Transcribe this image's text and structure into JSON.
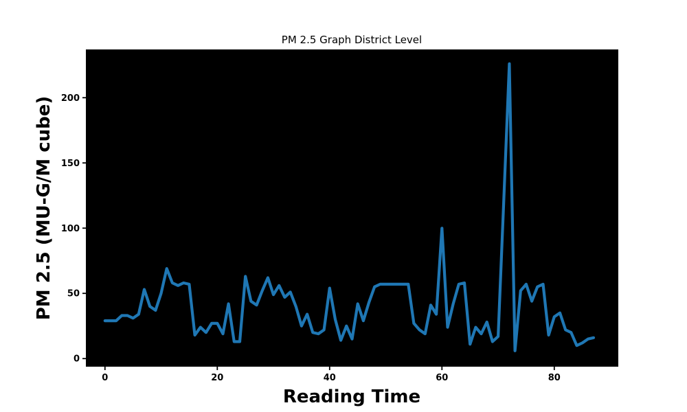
{
  "figure": {
    "title": "PM 2.5 Graph District Level",
    "xlabel": "Reading Time",
    "ylabel": "PM 2.5 (MU-G/M cube)"
  },
  "chart_data": {
    "type": "line",
    "title": "PM 2.5 Graph District Level",
    "xlabel": "Reading Time",
    "ylabel": "PM 2.5 (MU-G/M cube)",
    "x": [
      0,
      1,
      2,
      3,
      4,
      5,
      6,
      7,
      8,
      9,
      10,
      11,
      12,
      13,
      14,
      15,
      16,
      17,
      18,
      19,
      20,
      21,
      22,
      23,
      24,
      25,
      26,
      27,
      28,
      29,
      30,
      31,
      32,
      33,
      34,
      35,
      36,
      37,
      38,
      39,
      40,
      41,
      42,
      43,
      44,
      45,
      46,
      47,
      48,
      49,
      50,
      51,
      52,
      53,
      54,
      55,
      56,
      57,
      58,
      59,
      60,
      61,
      62,
      63,
      64,
      65,
      66,
      67,
      68,
      69,
      70,
      71,
      72,
      73,
      74,
      75,
      76,
      77,
      78,
      79,
      80,
      81,
      82,
      83,
      84,
      85,
      86,
      87
    ],
    "values": [
      29,
      29,
      29,
      33,
      33,
      31,
      34,
      53,
      40,
      37,
      50,
      69,
      58,
      56,
      58,
      57,
      18,
      24,
      20,
      27,
      27,
      19,
      42,
      13,
      13,
      63,
      44,
      41,
      52,
      62,
      49,
      56,
      47,
      51,
      40,
      25,
      34,
      20,
      19,
      22,
      54,
      30,
      14,
      25,
      15,
      42,
      29,
      43,
      55,
      57,
      57,
      57,
      57,
      57,
      57,
      27,
      22,
      19,
      41,
      34,
      100,
      24,
      42,
      57,
      58,
      11,
      24,
      19,
      28,
      13,
      17,
      120,
      226,
      6,
      52,
      57,
      44,
      55,
      57,
      18,
      32,
      35,
      22,
      20,
      10,
      12,
      15,
      16
    ],
    "xlim": [
      -3.4,
      91.4
    ],
    "ylim": [
      -6.2,
      237.0
    ],
    "x_ticks": [
      0,
      20,
      40,
      60,
      80
    ],
    "y_ticks": [
      0,
      50,
      100,
      150,
      200
    ],
    "line_color": "#1f77b4",
    "line_width": 4.2,
    "plot_bg": "#000000",
    "fig_bg": "#ffffff",
    "grid": false,
    "legend": null
  }
}
